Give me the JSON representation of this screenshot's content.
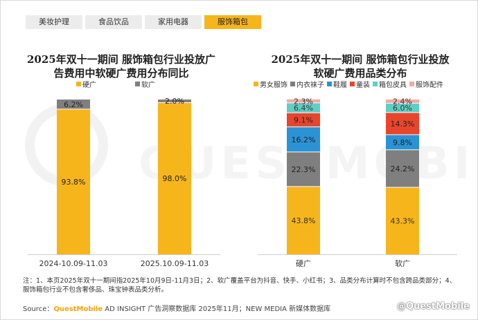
{
  "tabs": [
    {
      "label": "美妆护理",
      "active": false
    },
    {
      "label": "食品饮品",
      "active": false
    },
    {
      "label": "家用电器",
      "active": false
    },
    {
      "label": "服饰箱包",
      "active": true
    }
  ],
  "watermark": "QUESTMOBILE",
  "colors": {
    "hard": "#f7b51c",
    "soft": "#7f7f7f",
    "men_women": "#f7b51c",
    "underwear": "#7f7f7f",
    "shoes": "#2a93d5",
    "kids": "#e8452c",
    "bags": "#5fcfc6",
    "accessories": "#f5a9a2"
  },
  "chart_data": [
    {
      "type": "bar",
      "stacked": true,
      "title_lines": [
        "2025年双十一期间 服饰箱包行业投放广",
        "告费用中软硬广费用分布同比"
      ],
      "categories": [
        "2024-10.09-11.03",
        "2025.10.09-11.03"
      ],
      "series": [
        {
          "name": "硬广",
          "color_key": "hard",
          "values": [
            93.8,
            98.0
          ],
          "labels": [
            "93.8%",
            "98.0%"
          ]
        },
        {
          "name": "软广",
          "color_key": "soft",
          "values": [
            6.2,
            2.0
          ],
          "labels": [
            "6.2%",
            "2.0%"
          ]
        }
      ],
      "ylim": [
        0,
        100
      ],
      "grid": false,
      "legend_position": "top"
    },
    {
      "type": "bar",
      "stacked": true,
      "title_lines": [
        "2025年双十一期间 服饰箱包行业投放",
        "软硬广费用品类分布"
      ],
      "categories": [
        "硬广",
        "软广"
      ],
      "series": [
        {
          "name": "男女服饰",
          "color_key": "men_women",
          "values": [
            43.8,
            43.3
          ],
          "labels": [
            "43.8%",
            "43.3%"
          ]
        },
        {
          "name": "内衣袜子",
          "color_key": "underwear",
          "values": [
            22.3,
            24.2
          ],
          "labels": [
            "22.3%",
            "24.2%"
          ]
        },
        {
          "name": "鞋履",
          "color_key": "shoes",
          "values": [
            16.2,
            9.8
          ],
          "labels": [
            "16.2%",
            "9.8%"
          ]
        },
        {
          "name": "童装",
          "color_key": "kids",
          "values": [
            9.1,
            14.3
          ],
          "labels": [
            "9.1%",
            "14.3%"
          ]
        },
        {
          "name": "箱包皮具",
          "color_key": "bags",
          "values": [
            6.4,
            6.0
          ],
          "labels": [
            "6.4%",
            "6.0%"
          ]
        },
        {
          "name": "服饰配件",
          "color_key": "accessories",
          "values": [
            2.3,
            2.4
          ],
          "labels": [
            "2.3%",
            "2.4%"
          ]
        }
      ],
      "ylim": [
        0,
        100
      ],
      "grid": false,
      "legend_position": "top"
    }
  ],
  "footnote": "注：1、本页2025年双十一期间指2025年10月9日-11月3日；2、软广覆盖平台为抖音、快手、小红书；3、品类分布计算时不包含跨品类部分；4、服饰箱包行业不包含奢侈品、珠宝钟表品类分析。",
  "source": {
    "prefix": "Source：",
    "brand": "QuestMobile",
    "rest": " AD INSIGHT 广告洞察数据库 2025年11月；NEW MEDIA 新媒体数据库"
  },
  "brandmark": "@QuestMobile"
}
